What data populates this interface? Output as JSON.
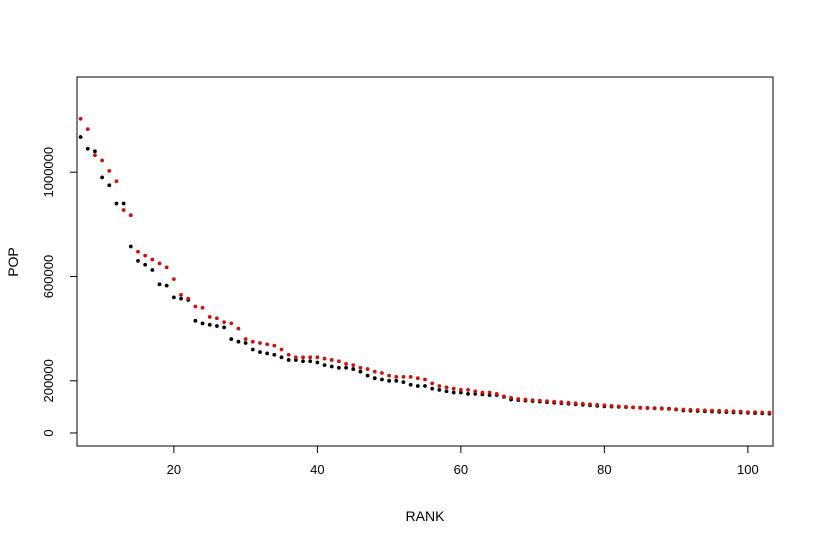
{
  "chart_data": {
    "type": "scatter",
    "title": "",
    "xlabel": "RANK",
    "ylabel": "POP",
    "xlim": [
      6.5,
      103.5
    ],
    "ylim": [
      -50000,
      1365000
    ],
    "xticks": [
      20,
      40,
      60,
      80,
      100
    ],
    "yticks": [
      0,
      200000,
      600000,
      1000000
    ],
    "ytick_labels": [
      "0",
      "200000",
      "600000",
      "1000000"
    ],
    "grid": false,
    "series": [
      {
        "color": "#000000",
        "x": [
          7,
          8,
          9,
          10,
          11,
          12,
          13,
          14,
          15,
          16,
          17,
          18,
          19,
          20,
          21,
          22,
          23,
          24,
          25,
          26,
          27,
          28,
          29,
          30,
          31,
          32,
          33,
          34,
          35,
          36,
          37,
          38,
          39,
          40,
          41,
          42,
          43,
          44,
          45,
          46,
          47,
          48,
          49,
          50,
          51,
          52,
          53,
          54,
          55,
          56,
          57,
          58,
          59,
          60,
          61,
          62,
          63,
          64,
          65,
          66,
          67,
          68,
          69,
          70,
          71,
          72,
          73,
          74,
          75,
          76,
          77,
          78,
          79,
          80,
          81,
          82,
          83,
          84,
          85,
          86,
          87,
          88,
          89,
          90,
          91,
          92,
          93,
          94,
          95,
          96,
          97,
          98,
          99,
          100,
          101,
          102,
          103
        ],
        "y": [
          1135000,
          1090000,
          1080000,
          980000,
          950000,
          880000,
          880000,
          715000,
          660000,
          645000,
          625000,
          570000,
          565000,
          520000,
          515000,
          510000,
          430000,
          420000,
          415000,
          410000,
          405000,
          360000,
          350000,
          345000,
          320000,
          310000,
          305000,
          300000,
          290000,
          280000,
          280000,
          275000,
          275000,
          270000,
          260000,
          255000,
          250000,
          250000,
          245000,
          235000,
          220000,
          210000,
          205000,
          200000,
          200000,
          195000,
          185000,
          180000,
          180000,
          170000,
          165000,
          160000,
          155000,
          155000,
          150000,
          150000,
          148000,
          145000,
          145000,
          138000,
          128000,
          126000,
          124000,
          122000,
          120000,
          118000,
          116000,
          114000,
          112000,
          110000,
          108000,
          106000,
          104000,
          102000,
          101000,
          100000,
          99000,
          98000,
          97000,
          96000,
          95000,
          94000,
          93000,
          90000,
          86000,
          85000,
          84000,
          83000,
          82000,
          81000,
          80000,
          79000,
          78000,
          77000,
          76000,
          75000,
          74000
        ]
      },
      {
        "color": "#c8140f",
        "x": [
          7,
          8,
          9,
          10,
          11,
          12,
          13,
          14,
          15,
          16,
          17,
          18,
          19,
          20,
          21,
          22,
          23,
          24,
          25,
          26,
          27,
          28,
          29,
          30,
          31,
          32,
          33,
          34,
          35,
          36,
          37,
          38,
          39,
          40,
          41,
          42,
          43,
          44,
          45,
          46,
          47,
          48,
          49,
          50,
          51,
          52,
          53,
          54,
          55,
          56,
          57,
          58,
          59,
          60,
          61,
          62,
          63,
          64,
          65,
          66,
          67,
          68,
          69,
          70,
          71,
          72,
          73,
          74,
          75,
          76,
          77,
          78,
          79,
          80,
          81,
          82,
          83,
          84,
          85,
          86,
          87,
          88,
          89,
          90,
          91,
          92,
          93,
          94,
          95,
          96,
          97,
          98,
          99,
          100,
          101,
          102,
          103
        ],
        "y": [
          1205000,
          1165000,
          1065000,
          1045000,
          1005000,
          965000,
          855000,
          835000,
          695000,
          680000,
          665000,
          650000,
          635000,
          590000,
          530000,
          515000,
          485000,
          480000,
          445000,
          440000,
          425000,
          420000,
          400000,
          360000,
          350000,
          345000,
          340000,
          335000,
          320000,
          300000,
          290000,
          290000,
          290000,
          290000,
          285000,
          280000,
          275000,
          265000,
          260000,
          250000,
          245000,
          235000,
          230000,
          220000,
          215000,
          215000,
          215000,
          210000,
          205000,
          190000,
          180000,
          175000,
          170000,
          165000,
          165000,
          160000,
          155000,
          155000,
          150000,
          140000,
          135000,
          130000,
          128000,
          126000,
          124000,
          122000,
          120000,
          118000,
          116000,
          114000,
          112000,
          110000,
          108000,
          106000,
          104000,
          102000,
          100000,
          98000,
          96000,
          95000,
          94000,
          93000,
          92000,
          91000,
          90000,
          89000,
          88000,
          87000,
          86000,
          85000,
          84000,
          83000,
          82000,
          80000,
          80000,
          79000,
          78000
        ]
      }
    ]
  }
}
